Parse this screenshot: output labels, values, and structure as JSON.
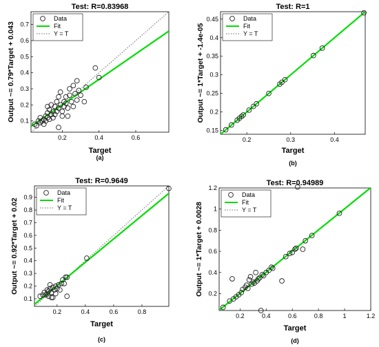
{
  "chart_data": [
    {
      "type": "scatter",
      "panel_label": "(a)",
      "title": "Test: R=0.83968",
      "xlabel": "Target",
      "ylabel": "Output ~= 0.79*Target + 0.043",
      "xlim": [
        0.03,
        0.78
      ],
      "ylim": [
        0.03,
        0.78
      ],
      "xticks": [
        0.2,
        0.4,
        0.6
      ],
      "yticks": [
        0.1,
        0.2,
        0.3,
        0.4,
        0.5,
        0.6,
        0.7
      ],
      "tick_labels_x": [
        "0.2",
        "0.4",
        "0.6"
      ],
      "tick_labels_y": [
        "0.1",
        "0.2",
        "0.3",
        "0.4",
        "0.5",
        "0.6",
        "0.7"
      ],
      "fit": {
        "slope": 0.79,
        "intercept": 0.043
      },
      "legend": {
        "placement": "top-left",
        "entries": [
          "Data",
          "Fit",
          "Y = T"
        ]
      },
      "colors": {
        "fit": "#00dd00",
        "data": "#222222",
        "ident": "#666666"
      },
      "points": [
        [
          0.05,
          0.08
        ],
        [
          0.06,
          0.07
        ],
        [
          0.07,
          0.1
        ],
        [
          0.08,
          0.09
        ],
        [
          0.08,
          0.12
        ],
        [
          0.09,
          0.1
        ],
        [
          0.1,
          0.11
        ],
        [
          0.1,
          0.08
        ],
        [
          0.11,
          0.13
        ],
        [
          0.11,
          0.1
        ],
        [
          0.12,
          0.15
        ],
        [
          0.12,
          0.12
        ],
        [
          0.13,
          0.11
        ],
        [
          0.13,
          0.17
        ],
        [
          0.14,
          0.14
        ],
        [
          0.14,
          0.2
        ],
        [
          0.15,
          0.12
        ],
        [
          0.15,
          0.16
        ],
        [
          0.16,
          0.14
        ],
        [
          0.16,
          0.19
        ],
        [
          0.17,
          0.22
        ],
        [
          0.17,
          0.16
        ],
        [
          0.18,
          0.18
        ],
        [
          0.18,
          0.25
        ],
        [
          0.19,
          0.2
        ],
        [
          0.19,
          0.28
        ],
        [
          0.2,
          0.16
        ],
        [
          0.2,
          0.13
        ],
        [
          0.21,
          0.22
        ],
        [
          0.21,
          0.19
        ],
        [
          0.22,
          0.25
        ],
        [
          0.22,
          0.21
        ],
        [
          0.23,
          0.18
        ],
        [
          0.24,
          0.26
        ],
        [
          0.24,
          0.3
        ],
        [
          0.25,
          0.22
        ],
        [
          0.26,
          0.19
        ],
        [
          0.26,
          0.32
        ],
        [
          0.27,
          0.27
        ],
        [
          0.28,
          0.23
        ],
        [
          0.28,
          0.35
        ],
        [
          0.29,
          0.29
        ],
        [
          0.3,
          0.26
        ],
        [
          0.32,
          0.22
        ],
        [
          0.33,
          0.31
        ],
        [
          0.38,
          0.43
        ],
        [
          0.4,
          0.37
        ],
        [
          0.18,
          0.06
        ],
        [
          0.23,
          0.13
        ],
        [
          0.12,
          0.19
        ]
      ]
    },
    {
      "type": "scatter",
      "panel_label": "(b)",
      "title": "Test: R=1",
      "xlabel": "Target",
      "ylabel": "Output ~= 1*Target + -1.4e-05",
      "xlim": [
        0.14,
        0.47
      ],
      "ylim": [
        0.14,
        0.47
      ],
      "xticks": [
        0.2,
        0.3,
        0.4
      ],
      "yticks": [
        0.15,
        0.2,
        0.25,
        0.3,
        0.35,
        0.4,
        0.45
      ],
      "tick_labels_x": [
        "0.2",
        "0.3",
        "0.4"
      ],
      "tick_labels_y": [
        "0.15",
        "0.2",
        "0.25",
        "0.3",
        "0.35",
        "0.4",
        "0.45"
      ],
      "fit": {
        "slope": 1,
        "intercept": -1.4e-05
      },
      "legend": {
        "placement": "top-left",
        "entries": [
          "Data",
          "Fit",
          "Y = T"
        ]
      },
      "colors": {
        "fit": "#00dd00",
        "data": "#222222",
        "ident": "#666666"
      },
      "points": [
        [
          0.152,
          0.152
        ],
        [
          0.165,
          0.165
        ],
        [
          0.178,
          0.178
        ],
        [
          0.183,
          0.183
        ],
        [
          0.188,
          0.188
        ],
        [
          0.192,
          0.192
        ],
        [
          0.205,
          0.205
        ],
        [
          0.215,
          0.215
        ],
        [
          0.222,
          0.222
        ],
        [
          0.25,
          0.25
        ],
        [
          0.275,
          0.275
        ],
        [
          0.28,
          0.28
        ],
        [
          0.287,
          0.287
        ],
        [
          0.352,
          0.352
        ],
        [
          0.372,
          0.372
        ],
        [
          0.467,
          0.467
        ]
      ]
    },
    {
      "type": "scatter",
      "panel_label": "(c)",
      "title": "Test: R=0.9649",
      "xlabel": "Target",
      "ylabel": "Output ~= 0.92*Target + 0.02",
      "xlim": [
        0.04,
        0.99
      ],
      "ylim": [
        0.04,
        0.99
      ],
      "xticks": [
        0.2,
        0.4,
        0.6,
        0.8
      ],
      "yticks": [
        0.1,
        0.2,
        0.3,
        0.4,
        0.5,
        0.6,
        0.7,
        0.8,
        0.9
      ],
      "tick_labels_x": [
        "0.2",
        "0.4",
        "0.6",
        "0.8"
      ],
      "tick_labels_y": [
        "0.1",
        "0.2",
        "0.3",
        "0.4",
        "0.5",
        "0.6",
        "0.7",
        "0.8",
        "0.9"
      ],
      "fit": {
        "slope": 0.92,
        "intercept": 0.02
      },
      "legend": {
        "placement": "top-left",
        "entries": [
          "Data",
          "Fit",
          "Y = T"
        ]
      },
      "colors": {
        "fit": "#00dd00",
        "data": "#222222",
        "ident": "#666666"
      },
      "points": [
        [
          0.08,
          0.12
        ],
        [
          0.1,
          0.13
        ],
        [
          0.11,
          0.15
        ],
        [
          0.12,
          0.13
        ],
        [
          0.13,
          0.17
        ],
        [
          0.13,
          0.14
        ],
        [
          0.14,
          0.16
        ],
        [
          0.14,
          0.12
        ],
        [
          0.15,
          0.21
        ],
        [
          0.15,
          0.18
        ],
        [
          0.16,
          0.15
        ],
        [
          0.16,
          0.11
        ],
        [
          0.17,
          0.19
        ],
        [
          0.17,
          0.11
        ],
        [
          0.18,
          0.17
        ],
        [
          0.19,
          0.2
        ],
        [
          0.19,
          0.14
        ],
        [
          0.2,
          0.18
        ],
        [
          0.21,
          0.21
        ],
        [
          0.22,
          0.17
        ],
        [
          0.23,
          0.22
        ],
        [
          0.24,
          0.25
        ],
        [
          0.25,
          0.22
        ],
        [
          0.26,
          0.27
        ],
        [
          0.27,
          0.27
        ],
        [
          0.27,
          0.12
        ],
        [
          0.41,
          0.42
        ],
        [
          0.99,
          0.97
        ]
      ]
    },
    {
      "type": "scatter",
      "panel_label": "(d)",
      "title": "Test: R=0.94989",
      "xlabel": "Target",
      "ylabel": "Output ~= 1*Target + 0.0028",
      "xlim": [
        0.04,
        1.2
      ],
      "ylim": [
        0.04,
        1.2
      ],
      "xticks": [
        0.2,
        0.4,
        0.6,
        0.8,
        1.0,
        1.2
      ],
      "yticks": [
        0.2,
        0.4,
        0.6,
        0.8,
        1.0,
        1.2
      ],
      "tick_labels_x": [
        "0.2",
        "0.4",
        "0.6",
        "0.8",
        "1",
        "1.2"
      ],
      "tick_labels_y": [
        "0.2",
        "0.4",
        "0.6",
        "0.8",
        "1",
        "1.2"
      ],
      "fit": {
        "slope": 1,
        "intercept": 0.0028
      },
      "legend": {
        "placement": "top-left",
        "entries": [
          "Data",
          "Fit",
          "Y = T"
        ]
      },
      "colors": {
        "fit": "#00dd00",
        "data": "#222222",
        "ident": "#666666"
      },
      "points": [
        [
          0.07,
          0.07
        ],
        [
          0.12,
          0.13
        ],
        [
          0.14,
          0.34
        ],
        [
          0.15,
          0.15
        ],
        [
          0.17,
          0.17
        ],
        [
          0.19,
          0.19
        ],
        [
          0.21,
          0.21
        ],
        [
          0.22,
          0.24
        ],
        [
          0.24,
          0.26
        ],
        [
          0.25,
          0.28
        ],
        [
          0.26,
          0.25
        ],
        [
          0.27,
          0.33
        ],
        [
          0.28,
          0.36
        ],
        [
          0.29,
          0.29
        ],
        [
          0.3,
          0.31
        ],
        [
          0.31,
          0.3
        ],
        [
          0.32,
          0.4
        ],
        [
          0.33,
          0.32
        ],
        [
          0.34,
          0.34
        ],
        [
          0.35,
          0.35
        ],
        [
          0.36,
          0.04
        ],
        [
          0.37,
          0.38
        ],
        [
          0.38,
          0.37
        ],
        [
          0.4,
          0.4
        ],
        [
          0.42,
          0.42
        ],
        [
          0.44,
          0.45
        ],
        [
          0.45,
          0.44
        ],
        [
          0.52,
          0.32
        ],
        [
          0.55,
          0.55
        ],
        [
          0.58,
          0.58
        ],
        [
          0.6,
          0.59
        ],
        [
          0.62,
          0.62
        ],
        [
          0.63,
          0.63
        ],
        [
          0.64,
          1.21
        ],
        [
          0.68,
          0.62
        ],
        [
          0.7,
          0.7
        ],
        [
          0.75,
          0.75
        ],
        [
          0.96,
          0.96
        ]
      ]
    }
  ]
}
